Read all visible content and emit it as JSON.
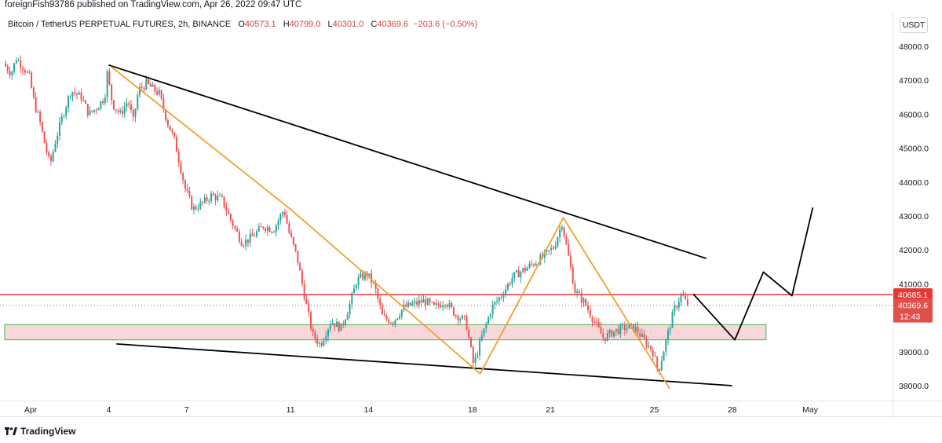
{
  "header": {
    "published": "foreignFish93786 published on TradingView.com, Apr 26, 2022 09:47 UTC"
  },
  "legend": {
    "symbol": "Bitcoin / TetherUS PERPETUAL FUTURES, 2h, BINANCE",
    "o_label": "O",
    "o": "40573.1",
    "h_label": "H",
    "h": "40799.0",
    "l_label": "L",
    "l": "40301.0",
    "c_label": "C",
    "c": "40369.6",
    "change": "−203.6 (−0.50%)"
  },
  "currency": "USDT",
  "branding": "TradingView",
  "colors": {
    "up": "#26a69a",
    "down": "#ef5350",
    "resistance_line": "#e53935",
    "support_zone_fill": "#f8d7da",
    "support_zone_border": "#4caf50",
    "trendline": "#000000",
    "pattern_line": "#f0a030",
    "price_tag": "#e0504a"
  },
  "chart_data": {
    "type": "candlestick",
    "timeframe": "2h",
    "ylim": [
      37500,
      48500
    ],
    "y_ticks": [
      "48000.0",
      "47000.0",
      "46000.0",
      "45000.0",
      "44000.0",
      "43000.0",
      "42000.0",
      "41000.0",
      "39000.0",
      "38000.0"
    ],
    "x_ticks": [
      {
        "label": "Apr",
        "day": 1
      },
      {
        "label": "4",
        "day": 4
      },
      {
        "label": "7",
        "day": 7
      },
      {
        "label": "11",
        "day": 11
      },
      {
        "label": "14",
        "day": 14
      },
      {
        "label": "18",
        "day": 18
      },
      {
        "label": "21",
        "day": 21
      },
      {
        "label": "25",
        "day": 25
      },
      {
        "label": "28",
        "day": 28
      },
      {
        "label": "May",
        "day": 31
      }
    ],
    "price_path": [
      [
        0.0,
        47500
      ],
      [
        0.3,
        47200
      ],
      [
        0.5,
        47650
      ],
      [
        0.8,
        47350
      ],
      [
        1.0,
        47100
      ],
      [
        1.2,
        46300
      ],
      [
        1.4,
        45800
      ],
      [
        1.6,
        45100
      ],
      [
        1.8,
        44500
      ],
      [
        2.0,
        45200
      ],
      [
        2.3,
        46000
      ],
      [
        2.6,
        46700
      ],
      [
        3.0,
        46500
      ],
      [
        3.3,
        46000
      ],
      [
        3.6,
        46200
      ],
      [
        3.9,
        46500
      ],
      [
        4.0,
        47200
      ],
      [
        4.2,
        46300
      ],
      [
        4.5,
        46000
      ],
      [
        4.8,
        46400
      ],
      [
        5.0,
        45800
      ],
      [
        5.2,
        46700
      ],
      [
        5.5,
        46900
      ],
      [
        6.0,
        46600
      ],
      [
        6.3,
        45800
      ],
      [
        6.6,
        45200
      ],
      [
        7.0,
        43800
      ],
      [
        7.3,
        43200
      ],
      [
        7.7,
        43400
      ],
      [
        8.0,
        43600
      ],
      [
        8.4,
        43500
      ],
      [
        8.8,
        42800
      ],
      [
        9.2,
        42200
      ],
      [
        9.6,
        42400
      ],
      [
        10.0,
        42700
      ],
      [
        10.4,
        42600
      ],
      [
        10.8,
        43200
      ],
      [
        11.0,
        42500
      ],
      [
        11.3,
        41800
      ],
      [
        11.6,
        40600
      ],
      [
        11.9,
        39500
      ],
      [
        12.2,
        39200
      ],
      [
        12.6,
        39900
      ],
      [
        13.0,
        39700
      ],
      [
        13.3,
        40300
      ],
      [
        13.6,
        41100
      ],
      [
        14.0,
        41300
      ],
      [
        14.3,
        40900
      ],
      [
        14.6,
        40000
      ],
      [
        15.0,
        39900
      ],
      [
        15.4,
        40300
      ],
      [
        15.8,
        40400
      ],
      [
        16.2,
        40500
      ],
      [
        16.6,
        40300
      ],
      [
        17.0,
        40500
      ],
      [
        17.4,
        40100
      ],
      [
        17.8,
        39900
      ],
      [
        18.1,
        38600
      ],
      [
        18.4,
        39400
      ],
      [
        18.8,
        40300
      ],
      [
        19.2,
        40700
      ],
      [
        19.6,
        41200
      ],
      [
        20.0,
        41400
      ],
      [
        20.4,
        41600
      ],
      [
        20.8,
        41800
      ],
      [
        21.2,
        42100
      ],
      [
        21.5,
        42800
      ],
      [
        21.7,
        42000
      ],
      [
        22.0,
        40800
      ],
      [
        22.4,
        40400
      ],
      [
        22.8,
        39800
      ],
      [
        23.1,
        39400
      ],
      [
        23.5,
        39600
      ],
      [
        23.9,
        39700
      ],
      [
        24.3,
        39700
      ],
      [
        24.7,
        39300
      ],
      [
        25.0,
        39000
      ],
      [
        25.2,
        38400
      ],
      [
        25.5,
        39300
      ],
      [
        25.8,
        40200
      ],
      [
        26.1,
        40700
      ],
      [
        26.3,
        40400
      ]
    ],
    "last_price": "40369.6",
    "countdown": "12:43",
    "horizontal_level": {
      "value": 40685.1,
      "label": "40685.1"
    },
    "support_zone": {
      "from_day": 0,
      "to_day": 29.3,
      "low": 39350,
      "high": 39800
    },
    "trendlines": [
      {
        "name": "upper-descending-trendline",
        "points": [
          [
            4.0,
            47450
          ],
          [
            27.0,
            41750
          ]
        ]
      },
      {
        "name": "lower-trendline",
        "points": [
          [
            4.3,
            39230
          ],
          [
            28.0,
            38000
          ]
        ]
      }
    ],
    "pattern_lines": [
      {
        "name": "orange-wave-1",
        "points": [
          [
            4.1,
            47400
          ],
          [
            11.0,
            43200
          ],
          [
            18.3,
            38350
          ]
        ]
      },
      {
        "name": "orange-wave-2",
        "points": [
          [
            18.3,
            38350
          ],
          [
            21.5,
            42950
          ],
          [
            25.6,
            37900
          ]
        ]
      }
    ],
    "projection_path": [
      [
        26.5,
        40700
      ],
      [
        28.1,
        39350
      ],
      [
        29.2,
        41350
      ],
      [
        30.3,
        40650
      ],
      [
        31.1,
        43250
      ]
    ]
  }
}
